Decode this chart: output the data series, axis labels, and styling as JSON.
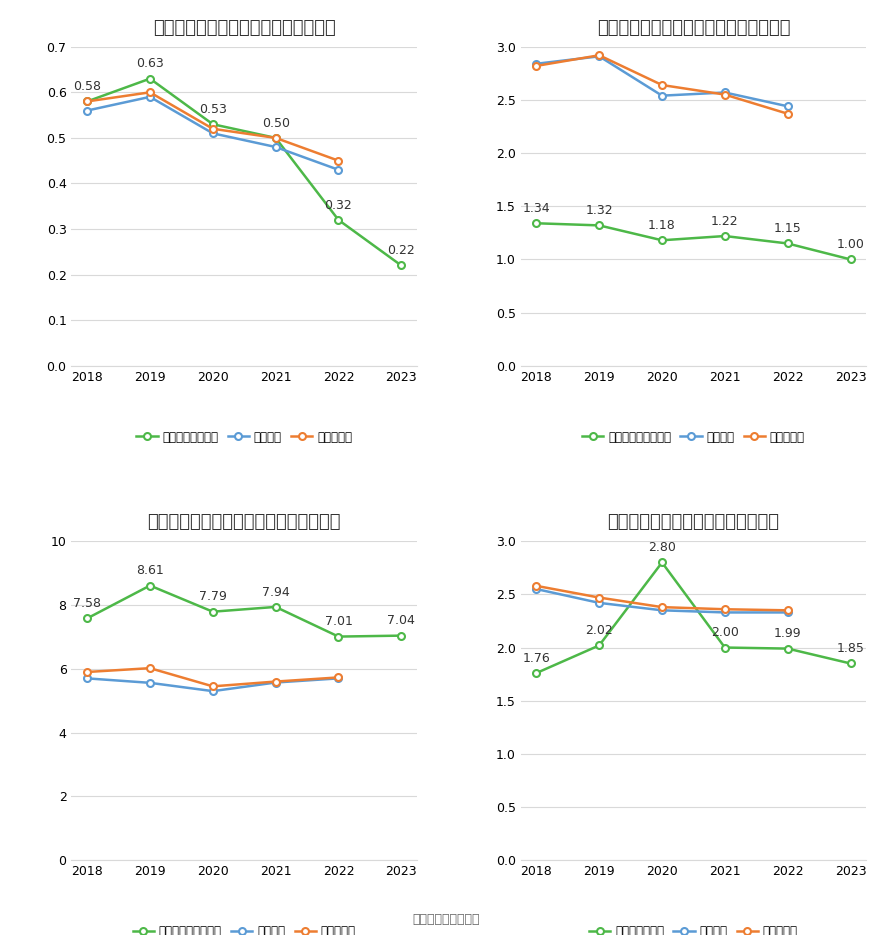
{
  "years": [
    2018,
    2019,
    2020,
    2021,
    2022,
    2023
  ],
  "charts": [
    {
      "title": "西点药业历年总资产周转率情况（次）",
      "legend_company": "公司总资产周转率",
      "company": [
        0.58,
        0.63,
        0.53,
        0.5,
        0.32,
        0.22
      ],
      "avg": [
        0.56,
        0.59,
        0.51,
        0.48,
        0.43,
        null
      ],
      "median": [
        0.58,
        0.6,
        0.52,
        0.5,
        0.45,
        null
      ],
      "ylim": [
        0,
        0.7
      ],
      "yticks": [
        0,
        0.1,
        0.2,
        0.3,
        0.4,
        0.5,
        0.6,
        0.7
      ]
    },
    {
      "title": "西点药业历年固定资产周转率情况（次）",
      "legend_company": "公司固定资产周转率",
      "company": [
        1.34,
        1.32,
        1.18,
        1.22,
        1.15,
        1.0
      ],
      "avg": [
        2.84,
        2.91,
        2.54,
        2.57,
        2.44,
        null
      ],
      "median": [
        2.82,
        2.92,
        2.64,
        2.55,
        2.37,
        null
      ],
      "ylim": [
        0,
        3.0
      ],
      "yticks": [
        0,
        0.5,
        1.0,
        1.5,
        2.0,
        2.5,
        3.0
      ]
    },
    {
      "title": "西点药业历年应收账款周转率情况（次）",
      "legend_company": "公司应收账款周转率",
      "company": [
        7.58,
        8.61,
        7.79,
        7.94,
        7.01,
        7.04
      ],
      "avg": [
        5.7,
        5.56,
        5.3,
        5.57,
        5.7,
        null
      ],
      "median": [
        5.9,
        6.02,
        5.45,
        5.6,
        5.73,
        null
      ],
      "ylim": [
        0,
        10
      ],
      "yticks": [
        0,
        2,
        4,
        6,
        8,
        10
      ]
    },
    {
      "title": "西点药业历年存货周转率情况（次）",
      "legend_company": "公司存货周转率",
      "company": [
        1.76,
        2.02,
        2.8,
        2.0,
        1.99,
        1.85
      ],
      "avg": [
        2.55,
        2.42,
        2.35,
        2.33,
        2.33,
        null
      ],
      "median": [
        2.58,
        2.47,
        2.38,
        2.36,
        2.35,
        null
      ],
      "ylim": [
        0,
        3.0
      ],
      "yticks": [
        0,
        0.5,
        1.0,
        1.5,
        2.0,
        2.5,
        3.0
      ]
    }
  ],
  "color_company": "#4db848",
  "color_avg": "#5b9bd5",
  "color_median": "#ed7d31",
  "legend_avg": "行业均值",
  "legend_median": "行业中位数",
  "bg_color": "#ffffff",
  "grid_color": "#d9d9d9",
  "footer": "数据来源：恒生聚源",
  "title_fontsize": 13,
  "label_fontsize": 9,
  "tick_fontsize": 9
}
